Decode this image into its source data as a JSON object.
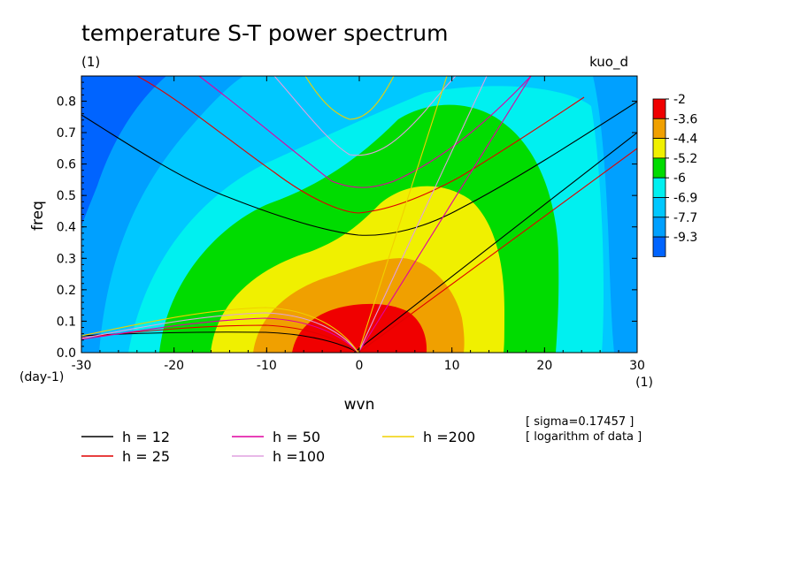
{
  "chart_data": {
    "type": "heatmap",
    "title": "temperature S-T power spectrum",
    "subtitle_left": "(1)",
    "subtitle_right": "kuo_d",
    "xlabel": "wvn",
    "ylabel": "freq",
    "x_unit_label": "(1)",
    "y_unit_label": "(day-1)",
    "xlim": [
      -30,
      30
    ],
    "ylim": [
      0,
      0.88
    ],
    "xticks": [
      -30,
      -20,
      -10,
      0,
      10,
      20,
      30
    ],
    "yticks": [
      0.0,
      0.1,
      0.2,
      0.3,
      0.4,
      0.5,
      0.6,
      0.7,
      0.8
    ],
    "ytick_labels": [
      "0.0",
      "0.1",
      "0.2",
      "0.3",
      "0.4",
      "0.5",
      "0.6",
      "0.7",
      "0.8"
    ],
    "colorbar": {
      "labels": [
        "-2",
        "-3.6",
        "-4.4",
        "-5.2",
        "-6",
        "-6.9",
        "-7.7",
        "-9.3"
      ],
      "colors": [
        "#f00000",
        "#f0a000",
        "#f0f000",
        "#00dc00",
        "#00f0f0",
        "#00c8ff",
        "#00a0ff",
        "#0064ff"
      ]
    },
    "levels_note": "colour bands from lowest to highest log power: deep blue, blue, light blue, cyan, green, yellow, orange, red",
    "dispersion_curves": [
      {
        "h": 12,
        "color": "#000000"
      },
      {
        "h": 25,
        "color": "#e00000"
      },
      {
        "h": 50,
        "color": "#e000a0"
      },
      {
        "h": 100,
        "color": "#e0a0e0"
      },
      {
        "h": 200,
        "color": "#f0d000"
      }
    ],
    "legend": {
      "entries": [
        "h = 12",
        "h = 25",
        "h = 50",
        "h =100",
        "h =200"
      ],
      "placement": "bottom"
    },
    "notes": [
      "[ sigma=0.17457 ]",
      "[ logarithm of data ]"
    ]
  }
}
